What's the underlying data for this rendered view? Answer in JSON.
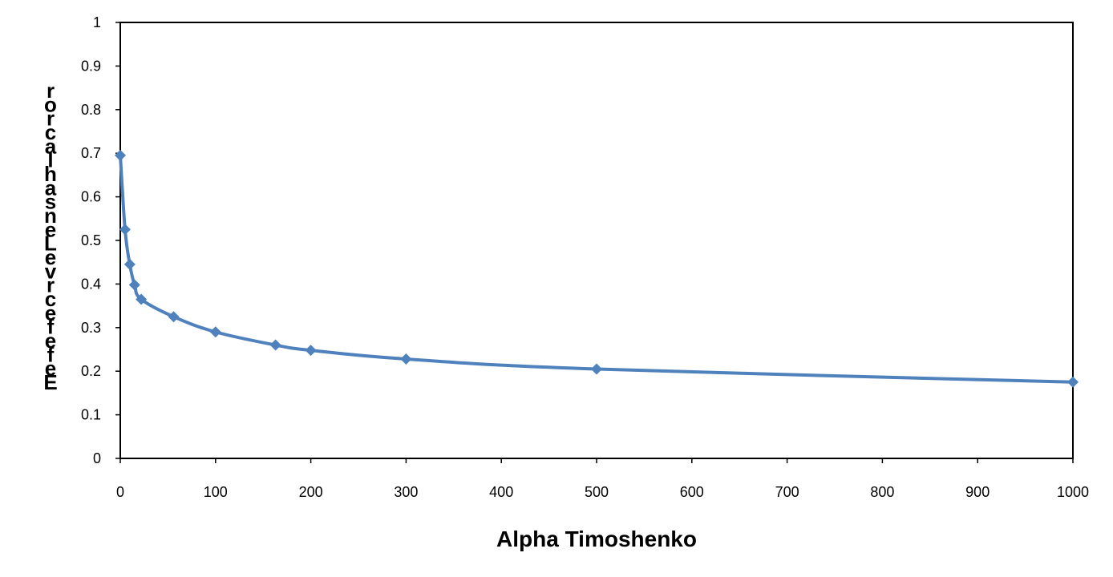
{
  "chart_data": {
    "type": "line",
    "title": "",
    "xlabel": "Alpha Timoshenko",
    "ylabel": "rorcal hasne Levrc e fe fe E",
    "xlim": [
      0,
      1000
    ],
    "ylim": [
      0,
      1
    ],
    "x_ticks": [
      "0",
      "100",
      "200",
      "300",
      "400",
      "500",
      "600",
      "700",
      "800",
      "900",
      "1000"
    ],
    "y_ticks": [
      "0",
      "0.1",
      "0.2",
      "0.3",
      "0.4",
      "0.5",
      "0.6",
      "0.7",
      "0.8",
      "0.9",
      "1"
    ],
    "grid": false,
    "legend": "none",
    "series": [
      {
        "color": "#4F81BD",
        "marker": "diamond",
        "x": [
          0,
          5,
          10,
          15,
          22,
          56,
          100,
          163,
          200,
          300,
          500,
          1000
        ],
        "y": [
          0.695,
          0.525,
          0.445,
          0.398,
          0.365,
          0.325,
          0.29,
          0.26,
          0.248,
          0.228,
          0.205,
          0.175
        ]
      }
    ]
  }
}
